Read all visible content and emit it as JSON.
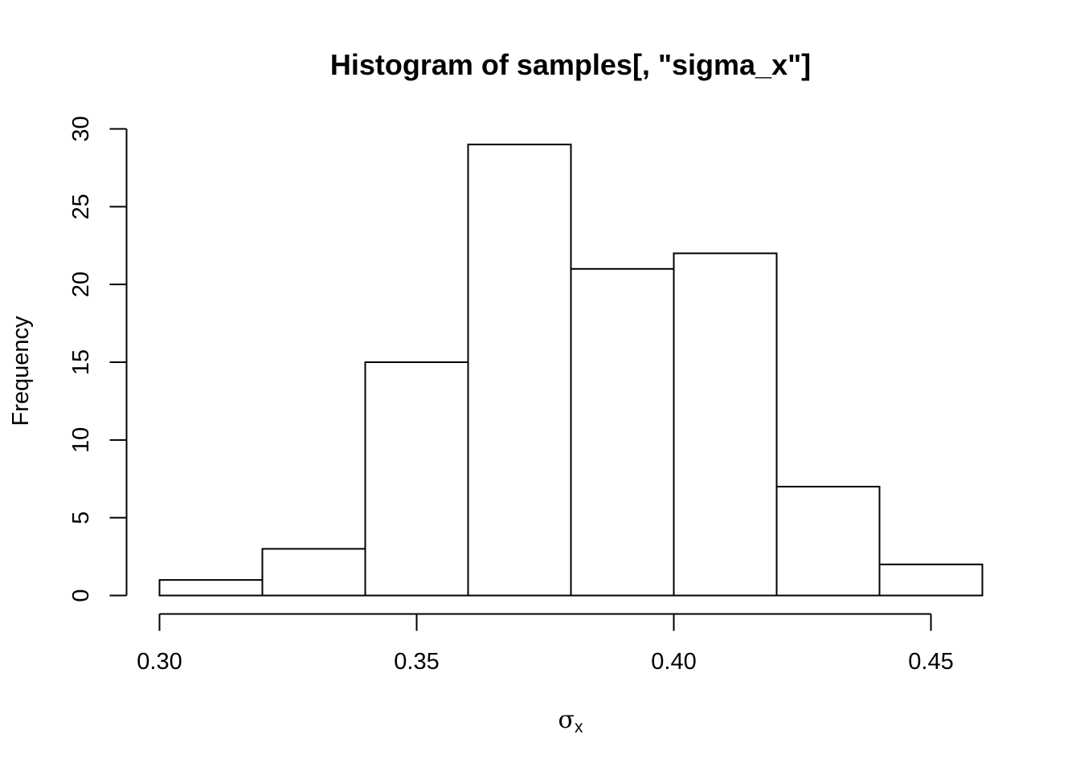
{
  "chart_data": {
    "type": "bar",
    "title": "Histogram of samples[, \"sigma_x\"]",
    "xlabel": {
      "symbol": "σ",
      "subscript": "x"
    },
    "ylabel": "Frequency",
    "bins": [
      {
        "start": 0.3,
        "end": 0.32,
        "count": 1
      },
      {
        "start": 0.32,
        "end": 0.34,
        "count": 3
      },
      {
        "start": 0.34,
        "end": 0.36,
        "count": 15
      },
      {
        "start": 0.36,
        "end": 0.38,
        "count": 29
      },
      {
        "start": 0.38,
        "end": 0.4,
        "count": 21
      },
      {
        "start": 0.4,
        "end": 0.42,
        "count": 22
      },
      {
        "start": 0.42,
        "end": 0.44,
        "count": 7
      },
      {
        "start": 0.44,
        "end": 0.46,
        "count": 2
      }
    ],
    "xticks": [
      0.3,
      0.35,
      0.4,
      0.45
    ],
    "xtick_labels": [
      "0.30",
      "0.35",
      "0.40",
      "0.45"
    ],
    "yticks": [
      0,
      5,
      10,
      15,
      20,
      25,
      30
    ],
    "ytick_labels": [
      "0",
      "5",
      "10",
      "15",
      "20",
      "25",
      "30"
    ],
    "xlim": [
      0.3,
      0.46
    ],
    "ylim": [
      0,
      30
    ],
    "grid": false,
    "legend": "none",
    "bar_fill": "#ffffff",
    "bar_stroke": "#000000"
  }
}
